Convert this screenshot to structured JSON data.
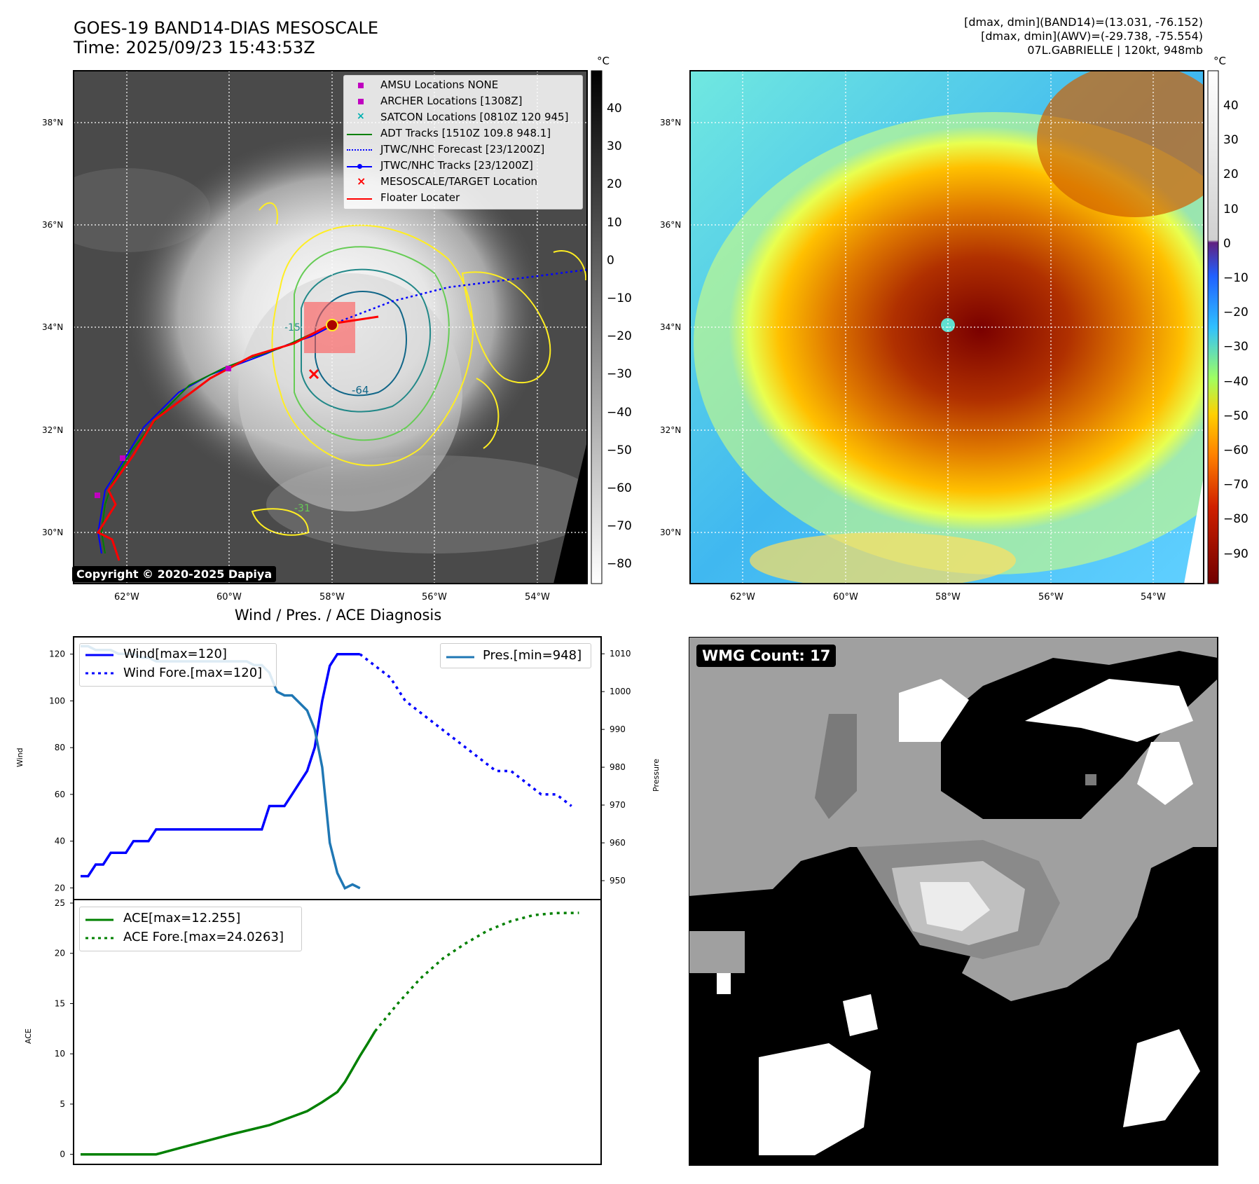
{
  "header": {
    "title_line1": "GOES-19 BAND14-DIAS MESOSCALE",
    "title_line2": "Time: 2025/09/23 15:43:53Z",
    "stats_line1": "[dmax, dmin](BAND14)=(13.031, -76.152)",
    "stats_line2": "[dmax, dmin](AWV)=(-29.738, -75.554)",
    "stats_line3": "07L.GABRIELLE | 120kt, 948mb"
  },
  "map_panels": {
    "lat_labels": [
      "38°N",
      "36°N",
      "34°N",
      "32°N",
      "30°N"
    ],
    "lon_labels": [
      "62°W",
      "60°W",
      "58°W",
      "56°W",
      "54°W"
    ],
    "unit": "°C",
    "copyright": "Copyright © 2020-2025 Dapiya",
    "ir_colorbar_ticks": [
      "40",
      "30",
      "20",
      "10",
      "0",
      "−10",
      "−20",
      "−30",
      "−40",
      "−50",
      "−60",
      "−70",
      "−80"
    ],
    "wv_colorbar_ticks": [
      "40",
      "30",
      "20",
      "10",
      "0",
      "−10",
      "−20",
      "−30",
      "−40",
      "−50",
      "−60",
      "−70",
      "−80",
      "−90"
    ],
    "legend": [
      {
        "label": "AMSU Locations NONE",
        "color": "#c000c0",
        "kind": "square"
      },
      {
        "label": "ARCHER Locations [1308Z]",
        "color": "#c000c0",
        "kind": "square"
      },
      {
        "label": "SATCON Locations [0810Z 120 945]",
        "color": "#00b0b0",
        "kind": "x"
      },
      {
        "label": "ADT Tracks [1510Z 109.8 948.1]",
        "color": "#008000",
        "kind": "line"
      },
      {
        "label": "JTWC/NHC Forecast [23/1200Z]",
        "color": "#0000ff",
        "kind": "dotted"
      },
      {
        "label": "JTWC/NHC Tracks [23/1200Z]",
        "color": "#0000ff",
        "kind": "line-dot"
      },
      {
        "label": "MESOSCALE/TARGET Location",
        "color": "#ff0000",
        "kind": "redx"
      },
      {
        "label": "Floater Locater",
        "color": "#ff0000",
        "kind": "line"
      }
    ],
    "contour_labels": [
      "-64",
      "-31",
      "-15"
    ]
  },
  "diagnosis": {
    "title": "Wind / Pres. / ACE Diagnosis",
    "wind_ylabel": "Wind",
    "pres_ylabel": "Pressure",
    "ace_ylabel": "ACE",
    "legend_wind": "Wind[max=120]",
    "legend_wind_fore": "Wind Fore.[max=120]",
    "legend_pres": "Pres.[min=948]",
    "legend_ace": "ACE[max=12.255]",
    "legend_ace_fore": "ACE Fore.[max=24.0263]"
  },
  "wmg": {
    "label": "WMG Count: 17"
  },
  "chart_data": [
    {
      "type": "line",
      "title": "Wind / Pres. / ACE Diagnosis",
      "ylabel": "Wind",
      "ylim": [
        15,
        125
      ],
      "yticks": [
        20,
        40,
        60,
        80,
        100,
        120
      ],
      "series": [
        {
          "name": "Wind[max=120]",
          "color": "#0000ff",
          "style": "solid",
          "x": [
            0,
            1,
            2,
            3,
            4,
            5,
            6,
            7,
            8,
            9,
            10,
            11,
            12,
            13,
            14,
            15,
            16,
            17,
            18,
            19,
            20,
            21,
            22,
            23,
            24,
            25,
            26,
            27,
            28,
            29,
            30,
            31,
            32,
            33,
            34,
            35,
            36,
            37
          ],
          "values": [
            25,
            25,
            30,
            30,
            35,
            35,
            35,
            40,
            40,
            40,
            45,
            45,
            45,
            45,
            45,
            45,
            45,
            45,
            45,
            45,
            45,
            45,
            45,
            45,
            45,
            55,
            55,
            55,
            60,
            65,
            70,
            80,
            100,
            115,
            120,
            120,
            120,
            120
          ]
        },
        {
          "name": "Wind Fore.[max=120]",
          "color": "#0000ff",
          "style": "dotted",
          "x": [
            37,
            39,
            41,
            43,
            45,
            47,
            49,
            51,
            53,
            55,
            57,
            59,
            61,
            63,
            65
          ],
          "values": [
            120,
            115,
            110,
            100,
            95,
            90,
            85,
            80,
            75,
            70,
            70,
            65,
            60,
            60,
            55
          ]
        }
      ]
    },
    {
      "type": "line",
      "ylabel": "Pressure",
      "ylim": [
        945,
        1013
      ],
      "yticks": [
        950,
        960,
        970,
        980,
        990,
        1000,
        1010
      ],
      "series": [
        {
          "name": "Pres.[min=948]",
          "color": "#1f77b4",
          "style": "solid",
          "x": [
            0,
            1,
            2,
            3,
            4,
            5,
            6,
            7,
            8,
            9,
            10,
            11,
            12,
            13,
            14,
            15,
            16,
            17,
            18,
            19,
            20,
            21,
            22,
            23,
            24,
            25,
            26,
            27,
            28,
            29,
            30,
            31,
            32,
            33,
            34,
            35,
            36,
            37
          ],
          "values": [
            1012,
            1012,
            1011,
            1011,
            1011,
            1010,
            1010,
            1010,
            1009,
            1009,
            1008,
            1008,
            1008,
            1008,
            1008,
            1008,
            1008,
            1008,
            1008,
            1008,
            1008,
            1008,
            1008,
            1007,
            1007,
            1005,
            1000,
            999,
            999,
            997,
            995,
            990,
            980,
            960,
            952,
            948,
            949,
            948
          ]
        }
      ]
    },
    {
      "type": "line",
      "ylabel": "ACE",
      "ylim": [
        -1,
        25
      ],
      "yticks": [
        0,
        5,
        10,
        15,
        20,
        25
      ],
      "series": [
        {
          "name": "ACE[max=12.255]",
          "color": "#008000",
          "style": "solid",
          "x": [
            0,
            5,
            10,
            15,
            20,
            25,
            30,
            32,
            34,
            35,
            36,
            37,
            38,
            39
          ],
          "values": [
            0,
            0,
            0,
            1.0,
            2.0,
            2.9,
            4.3,
            5.2,
            6.2,
            7.2,
            8.5,
            9.8,
            11.0,
            12.255
          ]
        },
        {
          "name": "ACE Fore.[max=24.0263]",
          "color": "#008000",
          "style": "dotted",
          "x": [
            39,
            42,
            45,
            48,
            51,
            54,
            57,
            60,
            63,
            66
          ],
          "values": [
            12.255,
            15.0,
            17.5,
            19.5,
            21.0,
            22.3,
            23.2,
            23.8,
            24.0,
            24.0263
          ]
        }
      ]
    }
  ]
}
